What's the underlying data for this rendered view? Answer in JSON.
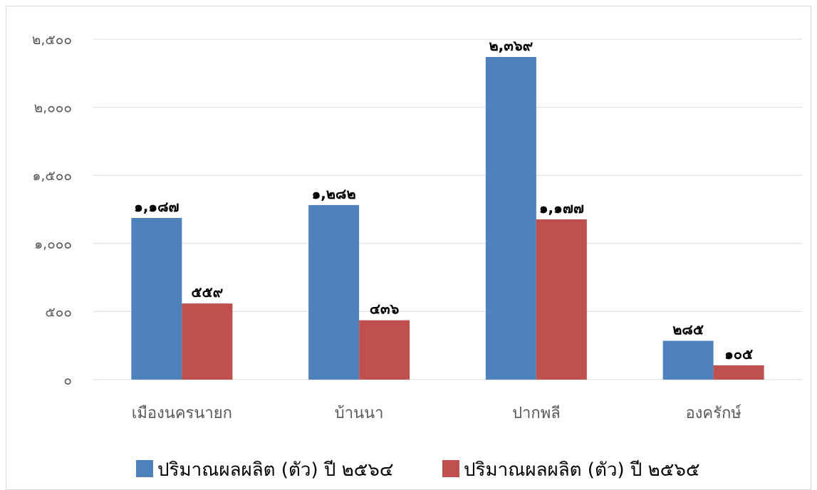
{
  "chart_data": {
    "type": "bar",
    "categories": [
      "เมืองนครนายก",
      "บ้านนา",
      "ปากพลี",
      "องครักษ์"
    ],
    "series": [
      {
        "name": "ปริมาณผลผลิต (ตัว) ปี ๒๕๖๔",
        "color": "#4f81bd",
        "values": [
          1187,
          1282,
          2369,
          285
        ],
        "labels": [
          "๑,๑๘๗",
          "๑,๒๘๒",
          "๒,๓๖๙",
          "๒๘๕"
        ]
      },
      {
        "name": "ปริมาณผลผลิต (ตัว) ปี ๒๕๖๕",
        "color": "#c0504d",
        "values": [
          559,
          436,
          1177,
          105
        ],
        "labels": [
          "๕๕๙",
          "๔๓๖",
          "๑,๑๗๗",
          "๑๐๕"
        ]
      }
    ],
    "y_ticks": [
      0,
      500,
      1000,
      1500,
      2000,
      2500
    ],
    "y_tick_labels": [
      "๐",
      "๕๐๐",
      "๑,๐๐๐",
      "๑,๕๐๐",
      "๒,๐๐๐",
      "๒,๕๐๐"
    ],
    "ylim": [
      0,
      2500
    ],
    "grid": true,
    "legend_position": "bottom"
  }
}
